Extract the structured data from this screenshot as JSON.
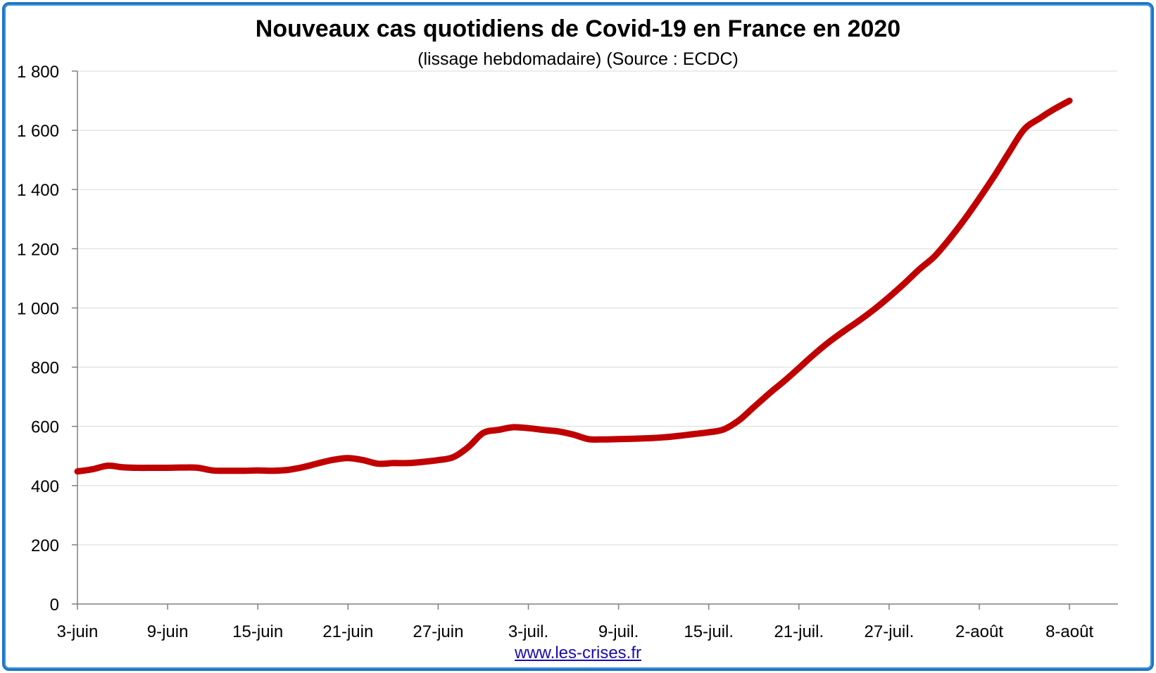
{
  "chart_data": {
    "type": "line",
    "title": "Nouveaux cas quotidiens de Covid-19 en France en 2020",
    "subtitle": "(lissage hebdomadaire) (Source : ECDC)",
    "source": "www.les-crises.fr",
    "ylim": [
      0,
      1800
    ],
    "yticks": [
      0,
      200,
      400,
      600,
      800,
      1000,
      1200,
      1400,
      1600,
      1800
    ],
    "ytick_labels": [
      "0",
      "200",
      "400",
      "600",
      "800",
      "1 000",
      "1 200",
      "1 400",
      "1 600",
      "1 800"
    ],
    "xtick_labels": [
      "3-juin",
      "9-juin",
      "15-juin",
      "21-juin",
      "27-juin",
      "3-juil.",
      "9-juil.",
      "15-juil.",
      "21-juil.",
      "27-juil.",
      "2-août",
      "8-août"
    ],
    "x_start": "3-juin",
    "grid": true,
    "series_color": "#c00000",
    "series": [
      {
        "values": [
          448,
          455,
          467,
          462,
          460,
          460,
          460,
          461,
          460,
          451,
          450,
          450,
          451,
          450,
          453,
          462,
          475,
          487,
          493,
          486,
          474,
          476,
          476,
          480,
          486,
          496,
          530,
          578,
          588,
          597,
          594,
          588,
          583,
          572,
          557,
          556,
          557,
          558,
          560,
          563,
          568,
          574,
          580,
          590,
          620,
          665,
          710,
          752,
          797,
          843,
          885,
          922,
          957,
          995,
          1037,
          1082,
          1130,
          1173,
          1232,
          1298,
          1370,
          1446,
          1527,
          1604,
          1640,
          1672,
          1700
        ]
      }
    ]
  }
}
